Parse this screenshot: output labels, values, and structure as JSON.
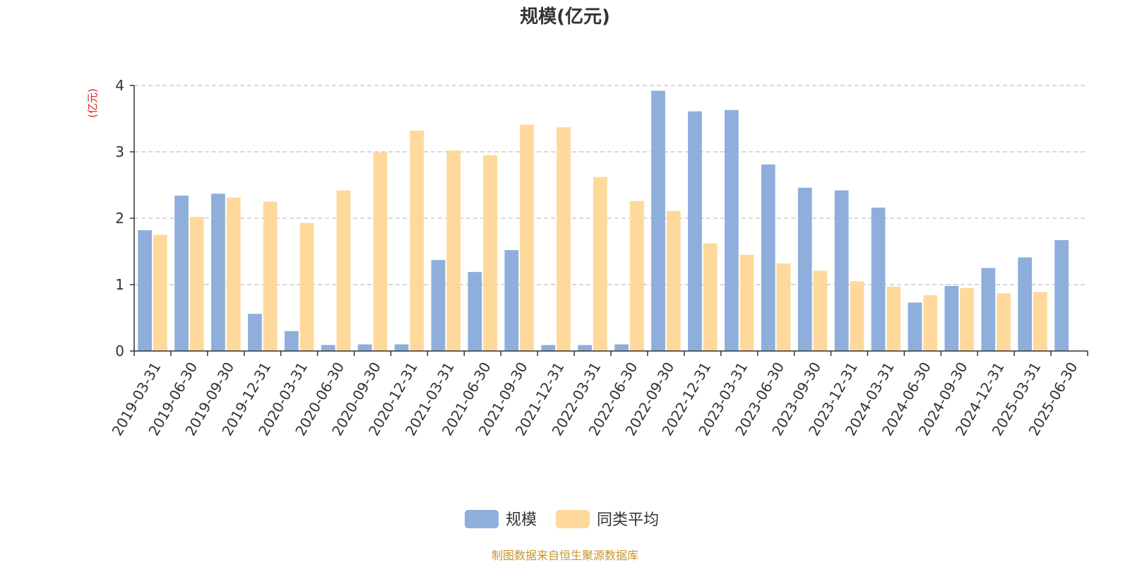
{
  "chart_data": {
    "type": "bar",
    "title": "规模(亿元)",
    "ylabel": "(亿元)",
    "ylim": [
      0,
      4
    ],
    "yticks": [
      "0",
      "1",
      "2",
      "3",
      "4"
    ],
    "grid": true,
    "legend_position": "bottom",
    "categories": [
      "2019-03-31",
      "2019-06-30",
      "2019-09-30",
      "2019-12-31",
      "2020-03-31",
      "2020-06-30",
      "2020-09-30",
      "2020-12-31",
      "2021-03-31",
      "2021-06-30",
      "2021-09-30",
      "2021-12-31",
      "2022-03-31",
      "2022-06-30",
      "2022-09-30",
      "2022-12-31",
      "2023-03-31",
      "2023-06-30",
      "2023-09-30",
      "2023-12-31",
      "2024-03-31",
      "2024-06-30",
      "2024-09-30",
      "2024-12-31",
      "2025-03-31",
      "2025-06-30"
    ],
    "series": [
      {
        "name": "规模",
        "color": "#8eaedc",
        "values": [
          1.82,
          2.34,
          2.37,
          0.56,
          0.3,
          0.09,
          0.1,
          0.1,
          1.37,
          1.19,
          1.52,
          0.09,
          0.09,
          0.1,
          3.92,
          3.61,
          3.63,
          2.81,
          2.46,
          2.42,
          2.16,
          0.73,
          0.98,
          1.25,
          1.41,
          1.67
        ]
      },
      {
        "name": "同类平均",
        "color": "#ffd99b",
        "values": [
          1.75,
          2.02,
          2.31,
          2.25,
          1.93,
          2.42,
          2.99,
          3.32,
          3.02,
          2.95,
          3.41,
          3.37,
          2.62,
          2.26,
          2.11,
          1.62,
          1.45,
          1.32,
          1.21,
          1.05,
          0.97,
          0.84,
          0.95,
          0.87,
          0.89,
          null
        ]
      }
    ]
  },
  "colors": {
    "axis": "#333333",
    "grid": "#cccccc",
    "unit_label": "#e02020",
    "source": "#c8962a"
  },
  "source_text": "制图数据来自恒生聚源数据库"
}
